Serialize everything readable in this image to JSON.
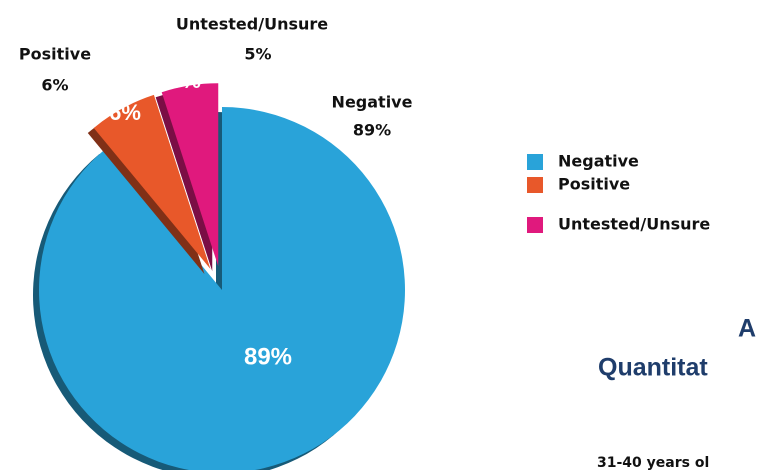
{
  "chart_data": {
    "type": "pie",
    "categories": [
      "Negative",
      "Positive",
      "Untested/Unsure"
    ],
    "values": [
      89,
      6,
      5
    ],
    "value_labels": [
      "89%",
      "6%",
      "5%"
    ],
    "colors": [
      "#29a3d9",
      "#e8582a",
      "#e0197d"
    ],
    "legend": "right",
    "annotations": [
      "A",
      "Quantitat",
      "31-40 years ol"
    ]
  }
}
